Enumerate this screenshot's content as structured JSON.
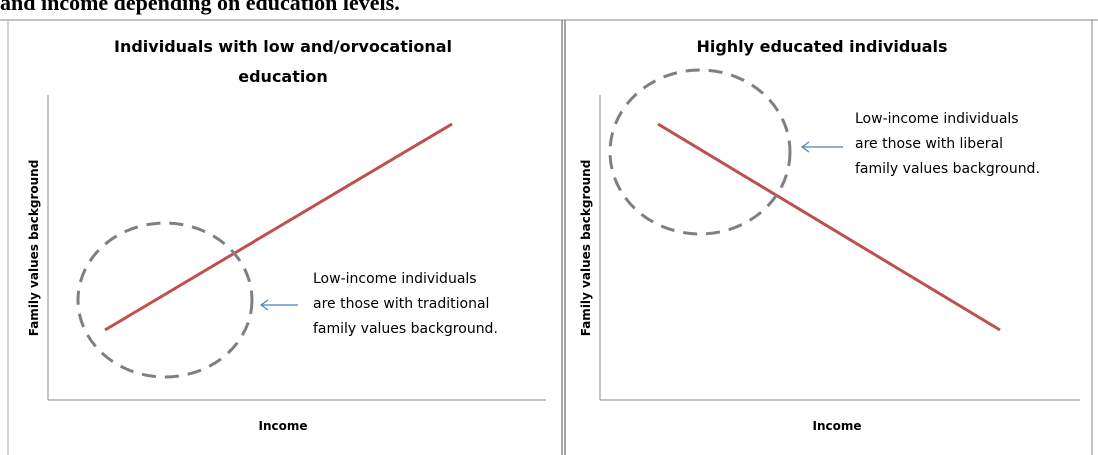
{
  "header": {
    "text": "and income depending on education levels."
  },
  "panels": [
    {
      "title": [
        "Individuals with low and/orvocational",
        "education"
      ],
      "y_label": "Family values  background",
      "x_label": "Income",
      "note": [
        "Low-income individuals",
        "are those with traditional",
        "family values background."
      ]
    },
    {
      "title": [
        "Highly educated individuals"
      ],
      "y_label": "Family values  background",
      "x_label": "Income",
      "note": [
        "Low-income individuals",
        "are those with liberal",
        "family values background."
      ]
    }
  ]
}
